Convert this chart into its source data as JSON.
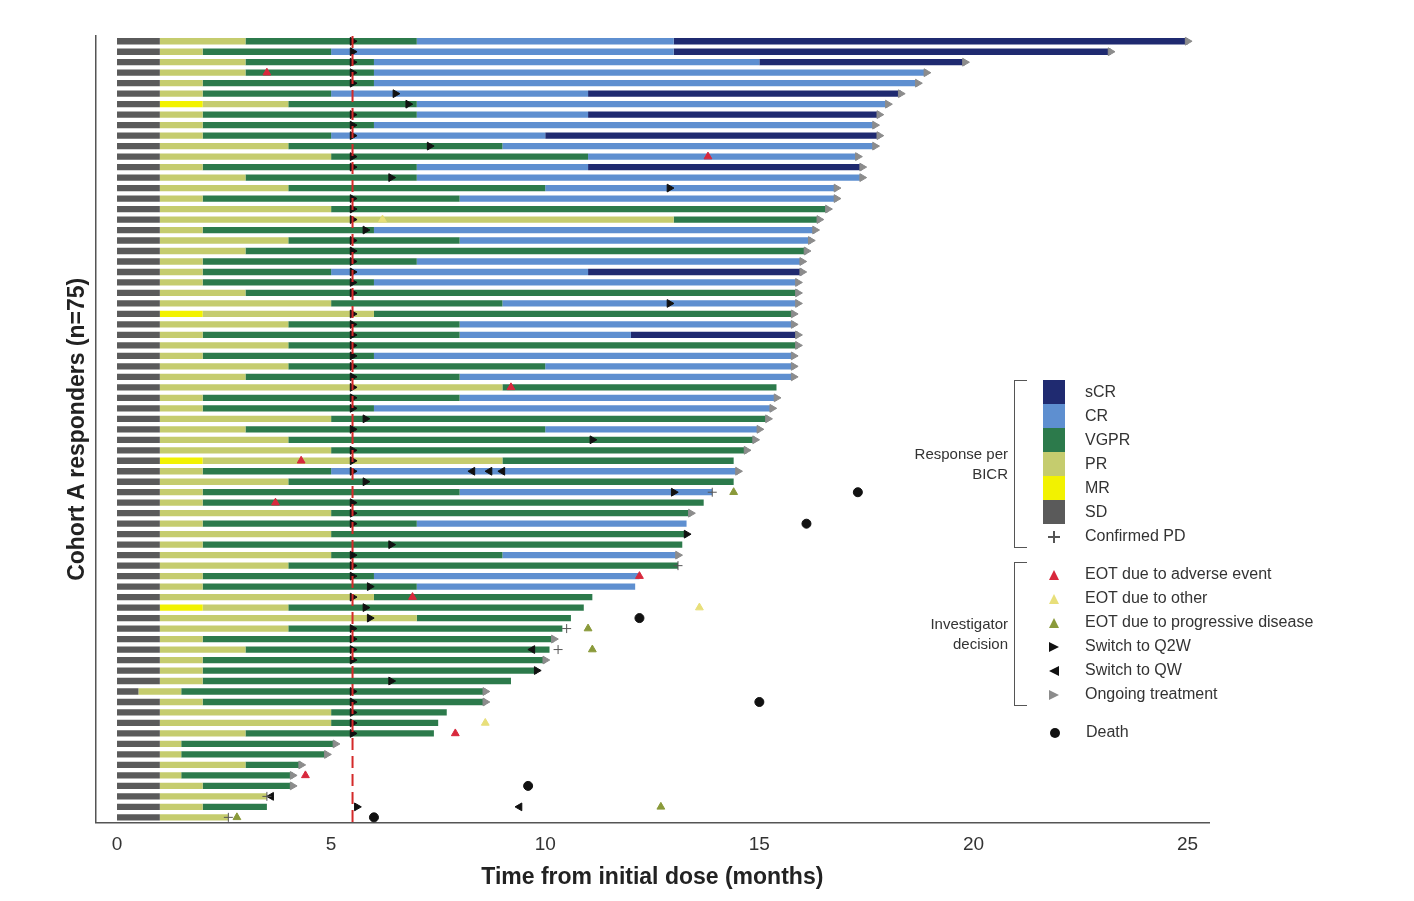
{
  "chart_data": {
    "type": "bar",
    "orientation": "horizontal",
    "stacked": true,
    "grid": false,
    "tick_labels": "x",
    "legend": "bottom right",
    "xlabel": "Time from initial dose (months)",
    "ylabel": "Cohort A responders (n=75)",
    "xlim": [
      -0.5,
      25.5
    ],
    "xticks": [
      0,
      5,
      10,
      15,
      20,
      25
    ],
    "ref_lines": [
      {
        "axis": "x",
        "value": 5.5,
        "color": "#d42a2a",
        "line_style": "dashed"
      }
    ],
    "annotations": [
      "Response per BICR",
      "Investigator decision"
    ],
    "categories": [
      null,
      null,
      null,
      null,
      null,
      null,
      null,
      null,
      null,
      null,
      null,
      null,
      null,
      null,
      null,
      null,
      null,
      null,
      null,
      null,
      null,
      null,
      null,
      null,
      null,
      null,
      null,
      null,
      null,
      null,
      null,
      null,
      null,
      null,
      null,
      null,
      null,
      null,
      null,
      null,
      null,
      null,
      null,
      null,
      null,
      null,
      null,
      null,
      null,
      null,
      null,
      null,
      null,
      null,
      null,
      null,
      null,
      null,
      null,
      null,
      null,
      null,
      null,
      null,
      null,
      null,
      null,
      null,
      null,
      null,
      null,
      null,
      null,
      null,
      null
    ],
    "series": [
      {
        "type": "bar",
        "name": "SD",
        "color": "#5a5a5a",
        "values": [
          1,
          1,
          1,
          1,
          1,
          1,
          1,
          1,
          1,
          1,
          1,
          1,
          1,
          1,
          1,
          1,
          1,
          1,
          1,
          1,
          1,
          1,
          1,
          1,
          1,
          1,
          1,
          1,
          1,
          1,
          1,
          1,
          1,
          1,
          1,
          1,
          1,
          1,
          1,
          1,
          1,
          1,
          1,
          1,
          1,
          1,
          1,
          1,
          1,
          1,
          1,
          1,
          1,
          1,
          1,
          1,
          1,
          1,
          1,
          1,
          1,
          1,
          0.5,
          1,
          1,
          1,
          1,
          1,
          1,
          1,
          1,
          1,
          1,
          1,
          1
        ]
      },
      {
        "type": "bar",
        "name": "MR",
        "color": "#f2f200",
        "values": [
          0,
          0,
          0,
          0,
          0,
          0,
          1,
          0,
          0,
          0,
          0,
          0,
          0,
          0,
          0,
          0,
          0,
          0,
          0,
          0,
          0,
          0,
          0,
          0,
          0,
          0,
          1,
          0,
          0,
          0,
          0,
          0,
          0,
          0,
          0,
          0,
          0,
          0,
          0,
          0,
          1,
          0,
          0,
          0,
          0,
          0,
          0,
          0,
          0,
          0,
          0,
          0,
          0,
          0,
          1,
          0,
          0,
          0,
          0,
          0,
          0,
          0,
          0,
          0,
          0,
          0,
          0,
          0,
          0,
          0,
          0,
          0,
          0,
          0,
          0
        ]
      },
      {
        "type": "bar",
        "name": "PR",
        "color": "#c5cc6e",
        "values": [
          2,
          1,
          2,
          2,
          1,
          1,
          2,
          1,
          1,
          1,
          3,
          4,
          1,
          2,
          3,
          1,
          4,
          12,
          1,
          3,
          2,
          1,
          1,
          1,
          2,
          4,
          4,
          3,
          1,
          3,
          1,
          3,
          2,
          8,
          1,
          1,
          4,
          2,
          3,
          4,
          7,
          1,
          3,
          1,
          1,
          4,
          1,
          4,
          1,
          4,
          3,
          1,
          1,
          5,
          2,
          6,
          3,
          1,
          2,
          1,
          1,
          1,
          1,
          1,
          4,
          4,
          2,
          0.5,
          0.5,
          2,
          0.5,
          1,
          2.5,
          1,
          1.6
        ]
      },
      {
        "type": "bar",
        "name": "VGPR",
        "color": "#2c7a4b",
        "values": [
          4,
          3,
          3,
          3,
          4,
          3,
          3,
          5,
          4,
          3,
          5,
          6,
          5,
          4,
          6,
          6,
          11.6,
          3.4,
          4,
          4,
          13.1,
          5,
          3,
          4,
          12.9,
          4,
          9.8,
          4,
          6,
          11.9,
          4,
          6,
          5,
          6.4,
          6,
          4,
          10.2,
          7,
          10.9,
          9.7,
          5.4,
          3,
          10.4,
          6,
          11.7,
          8.4,
          5,
          8.3,
          11.2,
          4,
          9.1,
          4,
          5,
          5.1,
          6.9,
          3.6,
          6.4,
          8.2,
          7.1,
          8,
          7.8,
          7.2,
          7.1,
          6.6,
          2.7,
          2.5,
          4.4,
          3.6,
          3.4,
          1.3,
          2.6,
          2.1,
          0,
          1.5,
          0
        ]
      },
      {
        "type": "bar",
        "name": "CR",
        "color": "#5e8fd0",
        "values": [
          6,
          8,
          9,
          12.9,
          12.7,
          6,
          11,
          4,
          11.7,
          5,
          8.7,
          6.3,
          4,
          10.4,
          6.8,
          8.8,
          0,
          0,
          10.3,
          8.2,
          0,
          9,
          6,
          9.9,
          0,
          6.9,
          0,
          7.8,
          4,
          0,
          9.8,
          5.8,
          7.8,
          0,
          7.4,
          9.3,
          0,
          5,
          0,
          0,
          0,
          9.5,
          0,
          5.9,
          0,
          0,
          6.3,
          0,
          0,
          4.1,
          0,
          6.2,
          5.1,
          0,
          0,
          0,
          0,
          0,
          0,
          0,
          0,
          0,
          0,
          0,
          0,
          0,
          0,
          0,
          0,
          0,
          0,
          0,
          0,
          0,
          0
        ]
      },
      {
        "type": "bar",
        "name": "sCR",
        "color": "#1f2a70",
        "values": [
          12,
          10.2,
          4.8,
          0,
          0,
          7.3,
          0,
          6.8,
          0,
          7.8,
          0,
          0,
          6.4,
          0,
          0,
          0,
          0,
          0,
          0,
          0,
          0,
          0,
          5,
          0,
          0,
          0,
          0,
          0,
          3.9,
          0,
          0,
          0,
          0,
          0,
          0,
          0,
          0,
          0,
          0,
          0,
          0,
          0,
          0,
          0,
          0,
          0,
          0,
          0,
          0,
          0,
          0,
          0,
          0,
          0,
          0,
          0,
          0,
          0,
          0,
          0,
          0,
          0,
          0,
          0,
          0,
          0,
          0,
          0,
          0,
          0,
          0,
          0,
          0,
          0,
          0
        ]
      },
      {
        "type": "scatter",
        "name": "Confirmed PD",
        "color": "#555555",
        "marker": "cross",
        "values": [
          null,
          null,
          null,
          null,
          null,
          null,
          null,
          null,
          null,
          null,
          null,
          null,
          null,
          null,
          null,
          null,
          null,
          null,
          null,
          null,
          null,
          null,
          null,
          null,
          null,
          null,
          null,
          null,
          null,
          null,
          null,
          null,
          null,
          null,
          null,
          null,
          null,
          null,
          null,
          null,
          null,
          null,
          null,
          13.9,
          null,
          null,
          null,
          null,
          null,
          null,
          13.1,
          null,
          null,
          null,
          null,
          null,
          10.5,
          null,
          10.3,
          null,
          null,
          null,
          null,
          null,
          null,
          null,
          null,
          null,
          null,
          null,
          null,
          null,
          3.5,
          null,
          2.6
        ]
      },
      {
        "type": "scatter",
        "name": "EOT due to adverse event",
        "color": "#d8283c",
        "marker": "triangle",
        "values": [
          null,
          null,
          null,
          3.5,
          null,
          null,
          null,
          null,
          null,
          null,
          null,
          13.8,
          null,
          null,
          null,
          null,
          null,
          null,
          null,
          null,
          null,
          null,
          null,
          null,
          null,
          null,
          null,
          null,
          null,
          null,
          null,
          null,
          null,
          9.2,
          null,
          null,
          null,
          null,
          null,
          null,
          4.3,
          null,
          null,
          null,
          3.7,
          null,
          null,
          null,
          null,
          null,
          null,
          12.2,
          null,
          6.9,
          null,
          null,
          null,
          null,
          null,
          null,
          null,
          null,
          null,
          null,
          null,
          null,
          7.9,
          null,
          null,
          null,
          4.4,
          null,
          null,
          null,
          null
        ]
      },
      {
        "type": "scatter",
        "name": "EOT due to other",
        "color": "#e8df7a",
        "marker": "triangle",
        "values": [
          null,
          null,
          null,
          null,
          null,
          null,
          null,
          null,
          null,
          null,
          null,
          null,
          null,
          null,
          null,
          null,
          null,
          6.2,
          null,
          null,
          null,
          null,
          null,
          null,
          null,
          null,
          null,
          null,
          null,
          null,
          null,
          null,
          null,
          null,
          null,
          null,
          null,
          null,
          null,
          null,
          null,
          null,
          null,
          null,
          null,
          null,
          null,
          null,
          null,
          null,
          null,
          null,
          null,
          null,
          13.6,
          null,
          null,
          null,
          null,
          null,
          null,
          null,
          null,
          null,
          null,
          8.6,
          null,
          null,
          null,
          null,
          null,
          null,
          null,
          null,
          null
        ]
      },
      {
        "type": "scatter",
        "name": "EOT due to progressive disease",
        "color": "#8a9a3a",
        "marker": "triangle",
        "values": [
          null,
          null,
          null,
          null,
          null,
          null,
          null,
          null,
          null,
          null,
          null,
          null,
          null,
          null,
          null,
          null,
          null,
          null,
          null,
          null,
          null,
          null,
          null,
          null,
          null,
          null,
          null,
          null,
          null,
          null,
          null,
          null,
          null,
          null,
          null,
          null,
          null,
          null,
          null,
          null,
          null,
          null,
          null,
          14.4,
          null,
          null,
          null,
          null,
          null,
          null,
          null,
          null,
          null,
          null,
          null,
          null,
          11.0,
          null,
          11.1,
          null,
          null,
          null,
          null,
          null,
          null,
          null,
          null,
          null,
          null,
          null,
          null,
          null,
          null,
          12.7,
          2.8
        ]
      },
      {
        "type": "scatter",
        "name": "Switch to Q2W",
        "color": "#111111",
        "marker": "triangle-right",
        "values": [
          5.5,
          5.5,
          5.5,
          5.5,
          5.5,
          6.5,
          6.8,
          5.5,
          5.5,
          5.5,
          7.3,
          5.5,
          5.5,
          6.4,
          12.9,
          5.5,
          5.5,
          5.5,
          5.8,
          5.5,
          5.5,
          5.5,
          5.5,
          5.5,
          5.5,
          12.9,
          5.5,
          5.5,
          5.5,
          5.5,
          5.5,
          5.5,
          5.5,
          5.5,
          5.5,
          5.5,
          5.8,
          5.5,
          11.1,
          5.5,
          5.5,
          5.5,
          5.8,
          13.0,
          5.5,
          5.5,
          5.5,
          13.3,
          6.4,
          5.5,
          5.5,
          5.5,
          5.9,
          5.5,
          5.8,
          5.9,
          5.5,
          5.5,
          5.5,
          5.5,
          9.8,
          6.4,
          5.5,
          5.5,
          5.5,
          5.5,
          5.5,
          null,
          null,
          null,
          null,
          null,
          null,
          5.6,
          null
        ]
      },
      {
        "type": "scatter",
        "name": "Switch to QW",
        "color": "#111111",
        "marker": "triangle-left",
        "values": [
          null,
          null,
          null,
          null,
          null,
          null,
          null,
          null,
          null,
          null,
          null,
          null,
          null,
          null,
          null,
          null,
          null,
          null,
          null,
          null,
          null,
          null,
          null,
          null,
          null,
          null,
          null,
          null,
          null,
          null,
          null,
          null,
          null,
          null,
          null,
          null,
          null,
          null,
          null,
          null,
          null,
          8.3,
          null,
          null,
          null,
          null,
          null,
          null,
          null,
          null,
          null,
          null,
          null,
          null,
          null,
          null,
          null,
          null,
          9.7,
          null,
          null,
          null,
          null,
          null,
          null,
          null,
          null,
          null,
          null,
          null,
          null,
          null,
          3.6,
          9.4,
          null
        ]
      },
      {
        "type": "scatter",
        "color": "#111111",
        "marker": "triangle-left",
        "values": [
          null,
          null,
          null,
          null,
          null,
          null,
          null,
          null,
          null,
          null,
          null,
          null,
          null,
          null,
          null,
          null,
          null,
          null,
          null,
          null,
          null,
          null,
          null,
          null,
          null,
          null,
          null,
          null,
          null,
          null,
          null,
          null,
          null,
          null,
          null,
          null,
          null,
          null,
          null,
          null,
          null,
          8.7,
          null,
          null,
          null,
          null,
          null,
          null,
          null,
          null,
          null,
          null,
          null,
          null,
          null,
          null,
          null,
          null,
          null,
          null,
          null,
          null,
          null,
          null,
          null,
          null,
          null,
          null,
          null,
          null,
          null,
          null,
          null,
          null,
          null
        ]
      },
      {
        "type": "scatter",
        "color": "#111111",
        "marker": "triangle-left",
        "values": [
          null,
          null,
          null,
          null,
          null,
          null,
          null,
          null,
          null,
          null,
          null,
          null,
          null,
          null,
          null,
          null,
          null,
          null,
          null,
          null,
          null,
          null,
          null,
          null,
          null,
          null,
          null,
          null,
          null,
          null,
          null,
          null,
          null,
          null,
          null,
          null,
          null,
          null,
          null,
          null,
          null,
          9.0,
          null,
          null,
          null,
          null,
          null,
          null,
          null,
          null,
          null,
          null,
          null,
          null,
          null,
          null,
          null,
          null,
          null,
          null,
          null,
          null,
          null,
          null,
          null,
          null,
          null,
          null,
          null,
          null,
          null,
          null,
          null,
          null,
          null
        ]
      },
      {
        "type": "scatter",
        "name": "Ongoing treatment",
        "color": "#8c8c8c",
        "marker": "triangle-right",
        "values": [
          25.0,
          23.2,
          19.8,
          18.9,
          18.7,
          18.3,
          18.0,
          17.8,
          17.7,
          17.8,
          17.7,
          17.3,
          17.4,
          17.4,
          16.8,
          16.8,
          16.6,
          16.4,
          16.3,
          16.2,
          16.1,
          16.0,
          16.0,
          15.9,
          15.9,
          15.9,
          15.8,
          15.8,
          15.9,
          15.9,
          15.8,
          15.8,
          15.8,
          null,
          15.4,
          15.3,
          15.2,
          15.0,
          14.9,
          14.7,
          null,
          14.5,
          null,
          null,
          null,
          13.4,
          null,
          null,
          null,
          13.1,
          null,
          null,
          null,
          null,
          null,
          null,
          null,
          10.2,
          null,
          10.0,
          null,
          null,
          8.6,
          8.6,
          null,
          null,
          null,
          5.1,
          4.9,
          4.3,
          4.1,
          4.1,
          null,
          null,
          null
        ]
      },
      {
        "type": "scatter",
        "name": "Death",
        "color": "#111111",
        "marker": "circle",
        "values": [
          null,
          null,
          null,
          null,
          null,
          null,
          null,
          null,
          null,
          null,
          null,
          null,
          null,
          null,
          null,
          null,
          null,
          null,
          null,
          null,
          null,
          null,
          null,
          null,
          null,
          null,
          null,
          null,
          null,
          null,
          null,
          null,
          null,
          null,
          null,
          null,
          null,
          null,
          null,
          null,
          null,
          null,
          null,
          17.3,
          null,
          null,
          16.1,
          null,
          null,
          null,
          null,
          null,
          null,
          null,
          null,
          12.2,
          null,
          null,
          null,
          null,
          null,
          null,
          null,
          15.0,
          null,
          null,
          null,
          null,
          null,
          null,
          null,
          9.6,
          null,
          null,
          6.0
        ]
      }
    ]
  }
}
